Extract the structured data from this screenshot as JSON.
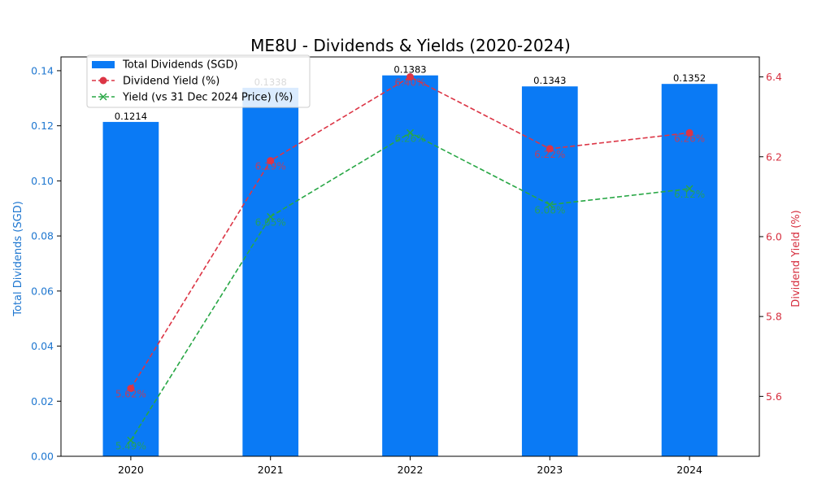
{
  "chart_data": {
    "type": "bar+line",
    "title": "ME8U - Dividends & Yields (2020-2024)",
    "categories": [
      "2020",
      "2021",
      "2022",
      "2023",
      "2024"
    ],
    "left_axis": {
      "label": "Total Dividends (SGD)",
      "ylim": [
        0,
        0.145
      ],
      "ticks": [
        "0.00",
        "0.02",
        "0.04",
        "0.06",
        "0.08",
        "0.10",
        "0.12",
        "0.14"
      ],
      "color": "#1f77d0"
    },
    "right_axis": {
      "label": "Dividend Yield (%)",
      "ylim": [
        5.45,
        6.45
      ],
      "ticks": [
        "5.6",
        "5.8",
        "6.0",
        "6.2",
        "6.4"
      ],
      "color": "#d62f3f"
    },
    "series": [
      {
        "name": "Total Dividends (SGD)",
        "kind": "bar",
        "axis": "left",
        "color": "#0a7af5",
        "values": [
          0.1214,
          0.1338,
          0.1383,
          0.1343,
          0.1352
        ],
        "labels": [
          "0.1214",
          "0.1338",
          "0.1383",
          "0.1343",
          "0.1352"
        ]
      },
      {
        "name": "Dividend Yield (%)",
        "kind": "line",
        "axis": "right",
        "color": "#dc3545",
        "style": "dashed",
        "marker": "circle",
        "values": [
          5.62,
          6.19,
          6.4,
          6.22,
          6.26
        ],
        "labels": [
          "5.62%",
          "6.19%",
          "6.40%",
          "6.22%",
          "6.26%"
        ]
      },
      {
        "name": "Yield (vs 31 Dec 2024 Price) (%)",
        "kind": "line",
        "axis": "right",
        "color": "#28a745",
        "style": "dashed",
        "marker": "x",
        "values": [
          5.49,
          6.05,
          6.26,
          6.08,
          6.12
        ],
        "labels": [
          "5.49%",
          "6.05%",
          "6.26%",
          "6.08%",
          "6.12%"
        ]
      }
    ],
    "legend_position": "top-left",
    "grid": false
  }
}
